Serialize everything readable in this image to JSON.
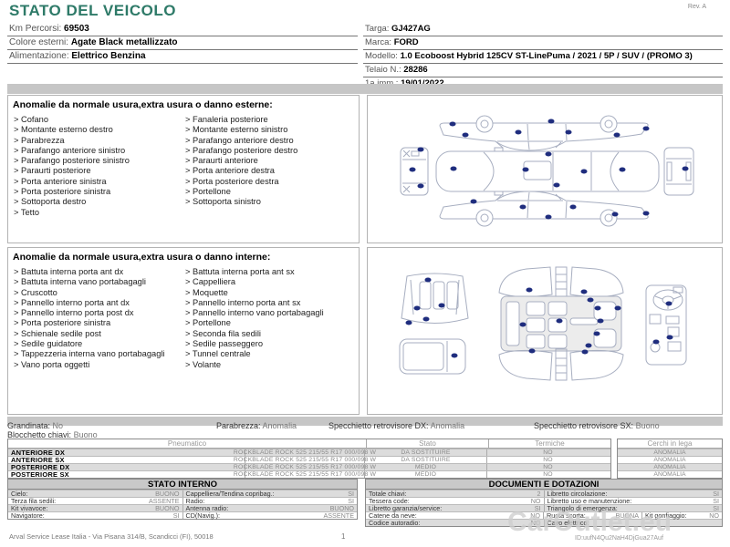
{
  "colors": {
    "title_green": "#2e7a68",
    "band_gray": "#c6c6c6",
    "stripe_gray": "#dcdcdc",
    "dot_blue": "#1f2d7e",
    "outline_gray": "#a7aec0"
  },
  "header": {
    "title": "STATO DEL VEICOLO",
    "rev": "Rev. A",
    "left_fields": [
      {
        "label": "Km Percorsi:",
        "value": "69503"
      },
      {
        "label": "Colore esterni:",
        "value": "Agate Black metallizzato"
      },
      {
        "label": "Alimentazione:",
        "value": "Elettrico Benzina"
      }
    ],
    "right_fields": [
      {
        "label": "Targa:",
        "value": "GJ427AG"
      },
      {
        "label": "Marca:",
        "value": "FORD"
      },
      {
        "label": "Modello:",
        "value": "1.0 Ecoboost Hybrid 125CV ST-LinePuma / 2021 / 5P / SUV / (PROMO 3)"
      },
      {
        "label": "Telaio N.:",
        "value": "28286"
      },
      {
        "label": "1a imm.:",
        "value": "19/01/2022"
      }
    ]
  },
  "exterior": {
    "title": "Anomalie da normale usura,extra usura o danno esterne:",
    "col1": [
      "Cofano",
      "Montante esterno destro",
      "Parabrezza",
      "Parafango anteriore sinistro",
      "Parafango posteriore sinistro",
      "Paraurti posteriore",
      "Porta anteriore sinistra",
      "Porta posteriore sinistra",
      "Sottoporta destro",
      "Tetto"
    ],
    "col2": [
      "Fanaleria posteriore",
      "Montante esterno sinistro",
      "Parafango anteriore destro",
      "Parafango posteriore destro",
      "Paraurti anteriore",
      "Porta anteriore destra",
      "Porta posteriore destra",
      "Portellone",
      "Sottoporta sinistro"
    ],
    "dots": [
      [
        24,
        19
      ],
      [
        27.6,
        27
      ],
      [
        42.6,
        25
      ],
      [
        51.8,
        17.4
      ],
      [
        56.8,
        24.7
      ],
      [
        70.4,
        26.7
      ],
      [
        78.6,
        22.6
      ],
      [
        15,
        36.8
      ],
      [
        12.6,
        50.5
      ],
      [
        15,
        61.8
      ],
      [
        24.3,
        49.5
      ],
      [
        44.7,
        50.5
      ],
      [
        51.1,
        40
      ],
      [
        53.4,
        60.6
      ],
      [
        61.2,
        51.7
      ],
      [
        72,
        50.1
      ],
      [
        89.7,
        49.7
      ],
      [
        29.8,
        71.9
      ],
      [
        43.7,
        75.6
      ],
      [
        51,
        82.8
      ],
      [
        58.1,
        75.6
      ],
      [
        69.9,
        81
      ],
      [
        78.5,
        80.4
      ]
    ]
  },
  "interior": {
    "title": "Anomalie da normale usura,extra usura o danno interne:",
    "col1": [
      "Battuta interna porta ant dx",
      "Battuta interna vano portabagagli",
      "Cruscotto",
      "Pannello interno porta ant dx",
      "Pannello interno porta post dx",
      "Porta posteriore sinistra",
      "Schienale sedile post",
      "Sedile guidatore",
      "Tappezzeria interna vano portabagagli",
      "Vano porta oggetti"
    ],
    "col2": [
      "Battuta interna porta ant sx",
      "Cappelliera",
      "Moquette",
      "Pannello interno porta ant sx",
      "Pannello interno vano portabagagli",
      "Portellone",
      "Seconda fila sedili",
      "Sedile passeggero",
      "Tunnel centrale",
      "Volante"
    ],
    "dots": [
      [
        16.9,
        19.4
      ],
      [
        14,
        36.2
      ],
      [
        20.8,
        34.8
      ],
      [
        16.5,
        42.8
      ],
      [
        11.7,
        45.2
      ],
      [
        24.6,
        64.7
      ],
      [
        45.7,
        25.3
      ],
      [
        61.1,
        26.5
      ],
      [
        63,
        31.3
      ],
      [
        64.9,
        36.2
      ],
      [
        70.6,
        36.2
      ],
      [
        43.7,
        46.1
      ],
      [
        54.1,
        44.2
      ],
      [
        65.6,
        44.2
      ],
      [
        64.7,
        51.8
      ],
      [
        62.4,
        58.6
      ],
      [
        46.4,
        62
      ],
      [
        61.4,
        62.9
      ],
      [
        85.1,
        33.5
      ],
      [
        85.4,
        53.6
      ],
      [
        81.5,
        56.8
      ]
    ]
  },
  "summary": {
    "items": [
      {
        "label": "Grandinata:",
        "value": "No"
      },
      {
        "label": "Parabrezza:",
        "value": "Anomalia"
      },
      {
        "label": "Specchietto retrovisore DX:",
        "value": "Anomalia"
      },
      {
        "label": "Specchietto retrovisore SX:",
        "value": "Buono"
      },
      {
        "label": "Blocchetto chiavi:",
        "value": "Buono"
      }
    ]
  },
  "tires": {
    "headers": [
      "Pneumatico",
      "Stato",
      "Termiche",
      "Cerchi in lega"
    ],
    "rows": [
      {
        "position": "ANTERIORE DX",
        "tire": "ROCKBLADE ROCK 525 215/55 R17 000/098 W",
        "stato": "DA SOSTITUIRE",
        "termiche": "NO",
        "cerchi": "ANOMALIA"
      },
      {
        "position": "ANTERIORE SX",
        "tire": "ROCKBLADE ROCK 525 215/55 R17 000/098 W",
        "stato": "DA SOSTITUIRE",
        "termiche": "NO",
        "cerchi": "ANOMALIA"
      },
      {
        "position": "POSTERIORE DX",
        "tire": "ROCKBLADE ROCK 525 215/55 R17 000/098 W",
        "stato": "MEDIO",
        "termiche": "NO",
        "cerchi": "ANOMALIA"
      },
      {
        "position": "POSTERIORE SX",
        "tire": "ROCKBLADE ROCK 525 215/55 R17 000/098 W",
        "stato": "MEDIO",
        "termiche": "NO",
        "cerchi": "ANOMALIA"
      }
    ]
  },
  "stato_interno": {
    "title": "STATO INTERNO",
    "rows": [
      {
        "l1": "Cielo:",
        "v1": "BUONO",
        "l2": "Cappelliera/Tendina copribag.:",
        "v2": "SI"
      },
      {
        "l1": "Terza fila sedili:",
        "v1": "ASSENTE",
        "l2": "Radio:",
        "v2": "SI"
      },
      {
        "l1": "Kit vivavoce:",
        "v1": "BUONO",
        "l2": "Antenna radio:",
        "v2": "BUONO"
      },
      {
        "l1": "Navigatore:",
        "v1": "SI",
        "l2": "CD(Navig.):",
        "v2": "ASSENTE"
      }
    ]
  },
  "documenti": {
    "title": "DOCUMENTI E DOTAZIONI",
    "rows": [
      {
        "l1": "Totale chiavi:",
        "v1": "2",
        "l2": "Libretto circolazione:",
        "v2": "SI"
      },
      {
        "l1": "Tessera code:",
        "v1": "NO",
        "l2": "Libretto uso e manutenzione:",
        "v2": "SI"
      },
      {
        "l1": "Libretto garanzia/service:",
        "v1": "SI",
        "l2": "Triangolo di emergenza:",
        "v2": "SI"
      },
      {
        "l1": "Catene da neve:",
        "v1": "NO",
        "l2": "Ruota scorta:",
        "v2": "BUONA",
        "l3": "Kit gonfiaggio:",
        "v3": "NO"
      },
      {
        "l1": "Codice autoradio:",
        "v1": "NO",
        "l2": "Cavo elettrico:",
        "v2": ""
      }
    ]
  },
  "footer": {
    "company": "Arval Service Lease Italia - Via Pisana 314/B, Scandicci (FI), 50018",
    "page": "1",
    "watermark": "CarOutlet.eu",
    "id_line": "ID:uufN4Qu2NaH4DjGua27Auf"
  }
}
